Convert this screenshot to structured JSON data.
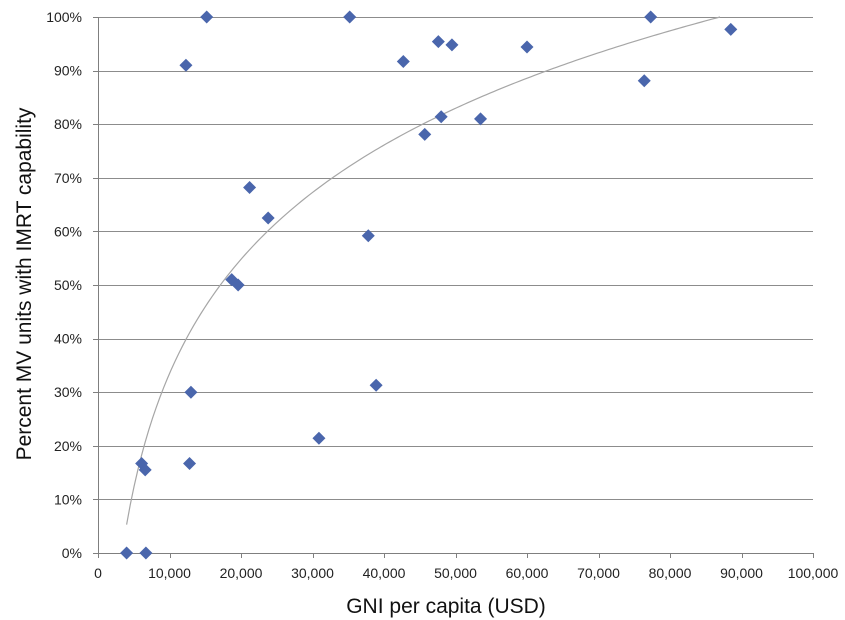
{
  "chart_data": {
    "type": "scatter",
    "title": "",
    "xlabel": "GNI per capita (USD)",
    "ylabel": "Percent MV units with IMRT capability",
    "xlim": [
      0,
      100000
    ],
    "ylim": [
      0,
      100
    ],
    "x_ticks": [
      0,
      10000,
      20000,
      30000,
      40000,
      50000,
      60000,
      70000,
      80000,
      90000,
      100000
    ],
    "x_tick_labels": [
      "0",
      "10,000",
      "20,000",
      "30,000",
      "40,000",
      "50,000",
      "60,000",
      "70,000",
      "80,000",
      "90,000",
      "100,000"
    ],
    "y_ticks": [
      0,
      10,
      20,
      30,
      40,
      50,
      60,
      70,
      80,
      90,
      100
    ],
    "y_tick_labels": [
      "0%",
      "10%",
      "20%",
      "30%",
      "40%",
      "50%",
      "60%",
      "70%",
      "80%",
      "90%",
      "100%"
    ],
    "grid": "horizontal",
    "legend": "none",
    "marker": "diamond",
    "marker_color": "#4a66ac",
    "trendline": {
      "type": "logarithmic",
      "color": "#a6a6a6",
      "x_range": [
        4000,
        87000
      ],
      "y_range": [
        5.3,
        100
      ]
    },
    "points": [
      {
        "x": 4000,
        "y": 0
      },
      {
        "x": 6700,
        "y": 0
      },
      {
        "x": 6100,
        "y": 16.7
      },
      {
        "x": 6600,
        "y": 15.5
      },
      {
        "x": 12300,
        "y": 91
      },
      {
        "x": 12800,
        "y": 16.7
      },
      {
        "x": 13000,
        "y": 30
      },
      {
        "x": 15200,
        "y": 100
      },
      {
        "x": 18700,
        "y": 51
      },
      {
        "x": 19600,
        "y": 50
      },
      {
        "x": 21200,
        "y": 68.2
      },
      {
        "x": 23800,
        "y": 62.5
      },
      {
        "x": 30900,
        "y": 21.4
      },
      {
        "x": 35200,
        "y": 100
      },
      {
        "x": 37800,
        "y": 59.2
      },
      {
        "x": 38900,
        "y": 31.3
      },
      {
        "x": 42700,
        "y": 91.7
      },
      {
        "x": 45700,
        "y": 78.1
      },
      {
        "x": 47600,
        "y": 95.4
      },
      {
        "x": 48000,
        "y": 81.4
      },
      {
        "x": 49500,
        "y": 94.8
      },
      {
        "x": 53500,
        "y": 81
      },
      {
        "x": 60000,
        "y": 94.4
      },
      {
        "x": 76400,
        "y": 88.1
      },
      {
        "x": 77300,
        "y": 100
      },
      {
        "x": 88500,
        "y": 97.7
      }
    ]
  }
}
